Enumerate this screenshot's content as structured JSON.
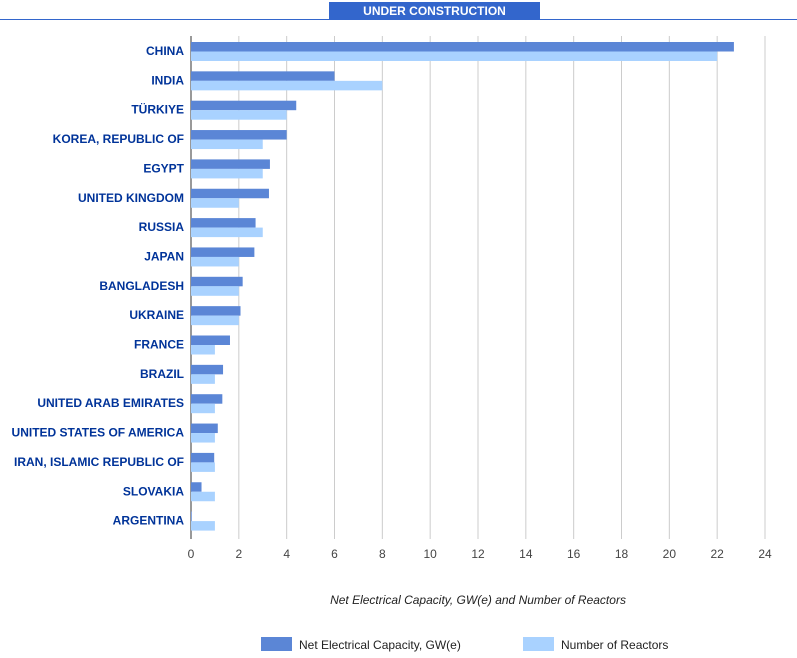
{
  "header": {
    "title": "UNDER CONSTRUCTION"
  },
  "colors": {
    "header_bg": "#3366cc",
    "series1": "#5b86d6",
    "series2": "#a9d2ff",
    "label": "#003399",
    "grid": "#cccccc"
  },
  "chart_data": {
    "type": "bar",
    "orientation": "horizontal",
    "categories": [
      "CHINA",
      "INDIA",
      "TÜRKIYE",
      "KOREA, REPUBLIC OF",
      "EGYPT",
      "UNITED KINGDOM",
      "RUSSIA",
      "JAPAN",
      "BANGLADESH",
      "UKRAINE",
      "FRANCE",
      "BRAZIL",
      "UNITED ARAB EMIRATES",
      "UNITED STATES OF AMERICA",
      "IRAN, ISLAMIC REPUBLIC OF",
      "SLOVAKIA",
      "ARGENTINA"
    ],
    "series": [
      {
        "name": "Net Electrical Capacity, GW(e)",
        "values": [
          22.7,
          6.0,
          4.4,
          4.0,
          3.3,
          3.26,
          2.7,
          2.65,
          2.16,
          2.07,
          1.63,
          1.34,
          1.31,
          1.12,
          0.97,
          0.44,
          0.03
        ]
      },
      {
        "name": "Number of Reactors",
        "values": [
          22,
          8,
          4,
          3,
          3,
          2,
          3,
          2,
          2,
          2,
          1,
          1,
          1,
          1,
          1,
          1,
          1
        ]
      }
    ],
    "xlabel": "Net Electrical Capacity, GW(e) and Number of Reactors",
    "ylabel": "",
    "xlim": [
      0,
      24
    ],
    "xticks": [
      0,
      2,
      4,
      6,
      8,
      10,
      12,
      14,
      16,
      18,
      20,
      22,
      24
    ],
    "grid": true,
    "legend_position": "bottom"
  }
}
